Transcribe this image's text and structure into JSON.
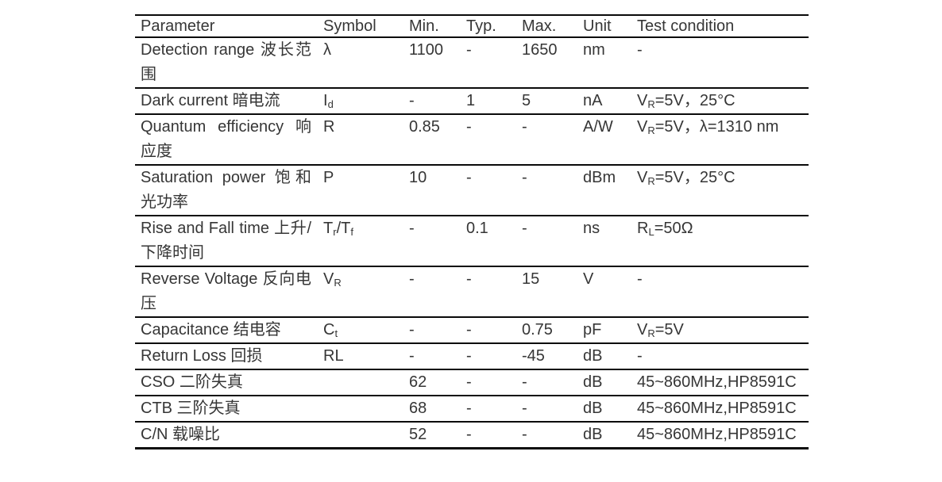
{
  "table": {
    "headers": [
      "Parameter",
      "Symbol",
      "Min.",
      "Typ.",
      "Max.",
      "Unit",
      "Test condition"
    ],
    "rows": [
      {
        "parameter": "Detection range 波长范围",
        "symbol": [
          {
            "text": "λ"
          }
        ],
        "min": "1100",
        "typ": "-",
        "max": "1650",
        "unit": "nm",
        "test_condition": [
          {
            "text": "-"
          }
        ]
      },
      {
        "parameter": "Dark current 暗电流",
        "symbol": [
          {
            "text": "I"
          },
          {
            "text": "d",
            "sub": true
          }
        ],
        "min": "-",
        "typ": "1",
        "max": "5",
        "unit": "nA",
        "test_condition": [
          {
            "text": "V"
          },
          {
            "text": "R",
            "sub": true
          },
          {
            "text": "=5V，25°C"
          }
        ]
      },
      {
        "parameter": "Quantum efficiency 响应度",
        "symbol": [
          {
            "text": "R"
          }
        ],
        "min": "0.85",
        "typ": "-",
        "max": "-",
        "unit": "A/W",
        "test_condition": [
          {
            "text": "V"
          },
          {
            "text": "R",
            "sub": true
          },
          {
            "text": "=5V，λ=1310 nm"
          }
        ]
      },
      {
        "parameter": "Saturation power 饱和光功率",
        "symbol": [
          {
            "text": "P"
          }
        ],
        "min": "10",
        "typ": "-",
        "max": "-",
        "unit": "dBm",
        "test_condition": [
          {
            "text": "V"
          },
          {
            "text": "R",
            "sub": true
          },
          {
            "text": "=5V，25°C"
          }
        ]
      },
      {
        "parameter": "Rise and Fall time 上升/下降时间",
        "symbol": [
          {
            "text": "T"
          },
          {
            "text": "r",
            "sub": true
          },
          {
            "text": "/T"
          },
          {
            "text": "f",
            "sub": true
          }
        ],
        "min": "-",
        "typ": "0.1",
        "max": "-",
        "unit": "ns",
        "test_condition": [
          {
            "text": "R"
          },
          {
            "text": "L",
            "sub": true
          },
          {
            "text": "=50Ω"
          }
        ]
      },
      {
        "parameter": "Reverse Voltage 反向电压",
        "symbol": [
          {
            "text": "V"
          },
          {
            "text": "R",
            "sub": true
          }
        ],
        "min": "-",
        "typ": "-",
        "max": "15",
        "unit": "V",
        "test_condition": [
          {
            "text": "-"
          }
        ]
      },
      {
        "parameter": "Capacitance 结电容",
        "symbol": [
          {
            "text": "C"
          },
          {
            "text": "t",
            "sub": true
          }
        ],
        "min": "-",
        "typ": "-",
        "max": "0.75",
        "unit": "pF",
        "test_condition": [
          {
            "text": "V"
          },
          {
            "text": "R",
            "sub": true
          },
          {
            "text": "=5V"
          }
        ]
      },
      {
        "parameter": "Return Loss 回损",
        "symbol": [
          {
            "text": "RL"
          }
        ],
        "min": "-",
        "typ": "-",
        "max": "-45",
        "unit": "dB",
        "test_condition": [
          {
            "text": "-"
          }
        ]
      },
      {
        "parameter": "CSO 二阶失真",
        "symbol": [],
        "min": "62",
        "typ": "-",
        "max": "-",
        "unit": "dB",
        "test_condition": [
          {
            "text": "45~860MHz,HP8591C"
          }
        ]
      },
      {
        "parameter": "CTB 三阶失真",
        "symbol": [],
        "min": "68",
        "typ": "-",
        "max": "-",
        "unit": "dB",
        "test_condition": [
          {
            "text": "45~860MHz,HP8591C"
          }
        ]
      },
      {
        "parameter": "C/N 载噪比",
        "symbol": [],
        "min": "52",
        "typ": "-",
        "max": "-",
        "unit": "dB",
        "test_condition": [
          {
            "text": "45~860MHz,HP8591C"
          }
        ]
      }
    ]
  }
}
